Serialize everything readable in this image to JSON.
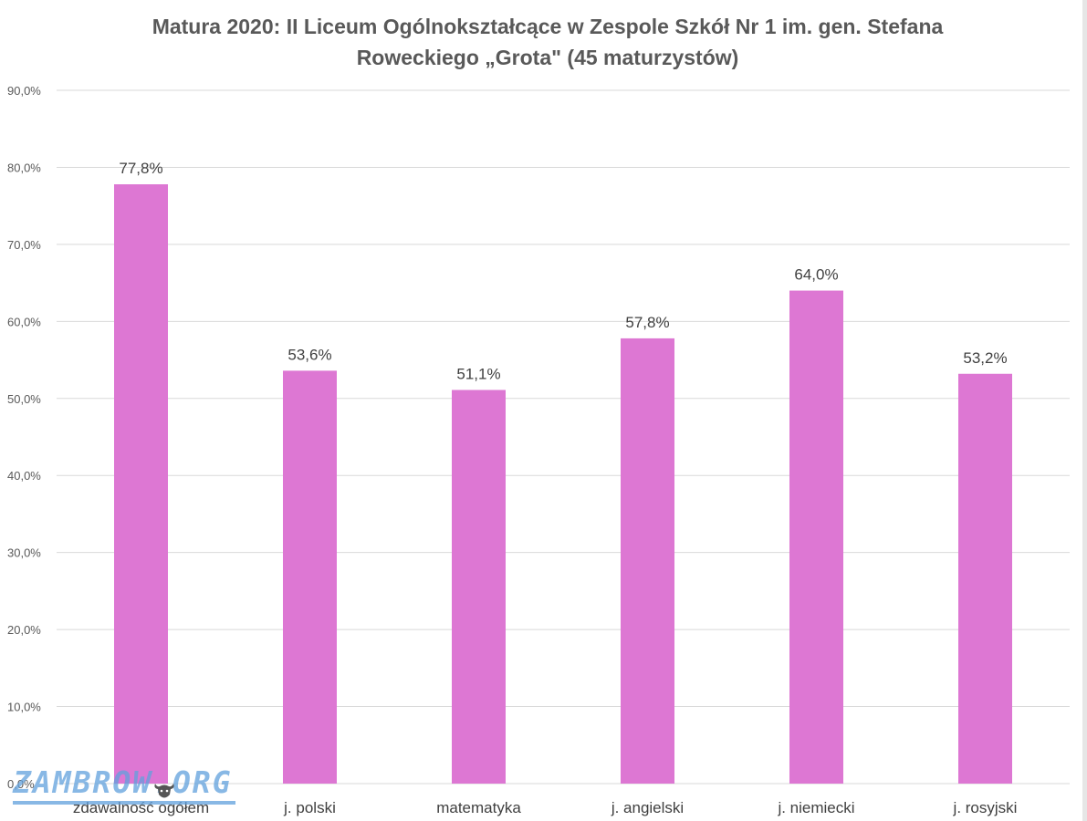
{
  "chart_data": {
    "type": "bar",
    "title_lines": [
      "Matura 2020: II Liceum Ogólnokształcące w Zespole Szkół Nr 1 im. gen. Stefana",
      "Roweckiego „Grota\" (45 maturzystów)"
    ],
    "categories": [
      "zdawalność ogółem",
      "j. polski",
      "matematyka",
      "j. angielski",
      "j. niemiecki",
      "j. rosyjski"
    ],
    "values": [
      77.8,
      53.6,
      51.1,
      57.8,
      64.0,
      53.2
    ],
    "data_labels": [
      "77,8%",
      "53,6%",
      "51,1%",
      "57,8%",
      "64,0%",
      "53,2%"
    ],
    "yticks": [
      0,
      10,
      20,
      30,
      40,
      50,
      60,
      70,
      80,
      90
    ],
    "ytick_labels": [
      "0,0%",
      "10,0%",
      "20,0%",
      "30,0%",
      "40,0%",
      "50,0%",
      "60,0%",
      "70,0%",
      "80,0%",
      "90,0%"
    ],
    "ylim": [
      0,
      90
    ],
    "grid": true,
    "bar_color": "#dd77d3",
    "grid_color": "#d9d9d9"
  },
  "watermark": {
    "text": "ZAMBROW.ORG",
    "icon": "bison-head-icon"
  }
}
